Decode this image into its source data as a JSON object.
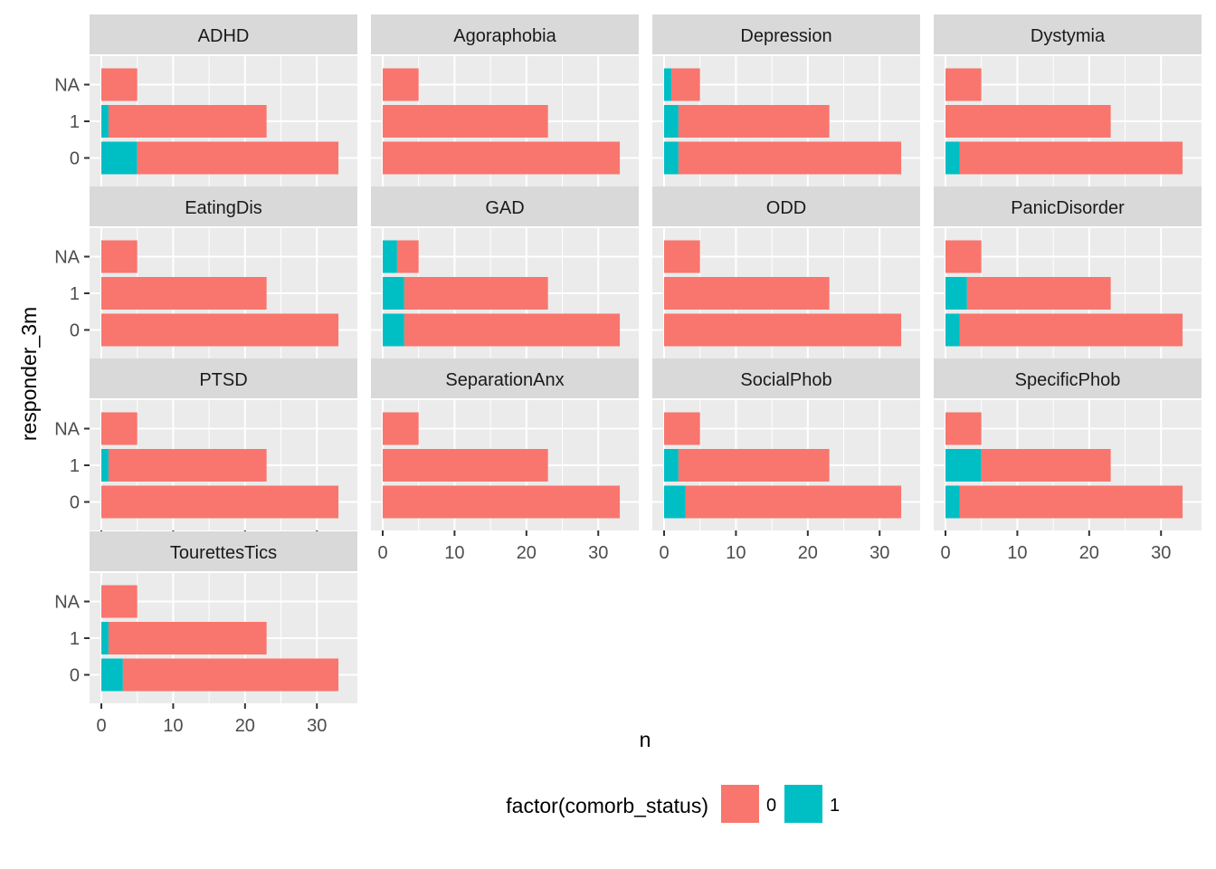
{
  "chart_data": {
    "type": "bar",
    "orientation": "horizontal",
    "stacked": true,
    "facet_layout": "wrap",
    "x_axis_shown_on": "bottom panel of each column",
    "xlabel": "n",
    "ylabel": "responder_3m",
    "categories": [
      "0",
      "1",
      "NA"
    ],
    "xlim": [
      0,
      34
    ],
    "x_ticks": [
      0,
      10,
      20,
      30
    ],
    "grid": true,
    "legend": {
      "title": "factor(comorb_status)",
      "placement": "bottom",
      "entries": [
        {
          "label": "0",
          "color": "#F8766D"
        },
        {
          "label": "1",
          "color": "#00BFC4"
        }
      ]
    },
    "colors": {
      "panel_bg": "#EBEBEB",
      "strip_bg": "#D9D9D9",
      "grid": "#FFFFFF",
      "axis_text": "#4D4D4D",
      "series_0": "#F8766D",
      "series_1": "#00BFC4"
    },
    "panels": [
      {
        "title": "ADHD",
        "series": [
          {
            "name": "0",
            "values": [
              28,
              22,
              5
            ]
          },
          {
            "name": "1",
            "values": [
              5,
              1,
              0
            ]
          }
        ]
      },
      {
        "title": "Agoraphobia",
        "series": [
          {
            "name": "0",
            "values": [
              33,
              23,
              5
            ]
          },
          {
            "name": "1",
            "values": [
              0,
              0,
              0
            ]
          }
        ]
      },
      {
        "title": "Depression",
        "series": [
          {
            "name": "0",
            "values": [
              31,
              21,
              4
            ]
          },
          {
            "name": "1",
            "values": [
              2,
              2,
              1
            ]
          }
        ]
      },
      {
        "title": "Dystymia",
        "series": [
          {
            "name": "0",
            "values": [
              31,
              23,
              5
            ]
          },
          {
            "name": "1",
            "values": [
              2,
              0,
              0
            ]
          }
        ]
      },
      {
        "title": "EatingDis",
        "series": [
          {
            "name": "0",
            "values": [
              33,
              23,
              5
            ]
          },
          {
            "name": "1",
            "values": [
              0,
              0,
              0
            ]
          }
        ]
      },
      {
        "title": "GAD",
        "series": [
          {
            "name": "0",
            "values": [
              30,
              20,
              3
            ]
          },
          {
            "name": "1",
            "values": [
              3,
              3,
              2
            ]
          }
        ]
      },
      {
        "title": "ODD",
        "series": [
          {
            "name": "0",
            "values": [
              33,
              23,
              5
            ]
          },
          {
            "name": "1",
            "values": [
              0,
              0,
              0
            ]
          }
        ]
      },
      {
        "title": "PanicDisorder",
        "series": [
          {
            "name": "0",
            "values": [
              31,
              20,
              5
            ]
          },
          {
            "name": "1",
            "values": [
              2,
              3,
              0
            ]
          }
        ]
      },
      {
        "title": "PTSD",
        "series": [
          {
            "name": "0",
            "values": [
              33,
              22,
              5
            ]
          },
          {
            "name": "1",
            "values": [
              0,
              1,
              0
            ]
          }
        ]
      },
      {
        "title": "SeparationAnx",
        "series": [
          {
            "name": "0",
            "values": [
              33,
              23,
              5
            ]
          },
          {
            "name": "1",
            "values": [
              0,
              0,
              0
            ]
          }
        ]
      },
      {
        "title": "SocialPhob",
        "series": [
          {
            "name": "0",
            "values": [
              30,
              21,
              5
            ]
          },
          {
            "name": "1",
            "values": [
              3,
              2,
              0
            ]
          }
        ]
      },
      {
        "title": "SpecificPhob",
        "series": [
          {
            "name": "0",
            "values": [
              31,
              18,
              5
            ]
          },
          {
            "name": "1",
            "values": [
              2,
              5,
              0
            ]
          }
        ]
      },
      {
        "title": "TourettesTics",
        "series": [
          {
            "name": "0",
            "values": [
              30,
              22,
              5
            ]
          },
          {
            "name": "1",
            "values": [
              3,
              1,
              0
            ]
          }
        ]
      }
    ]
  }
}
